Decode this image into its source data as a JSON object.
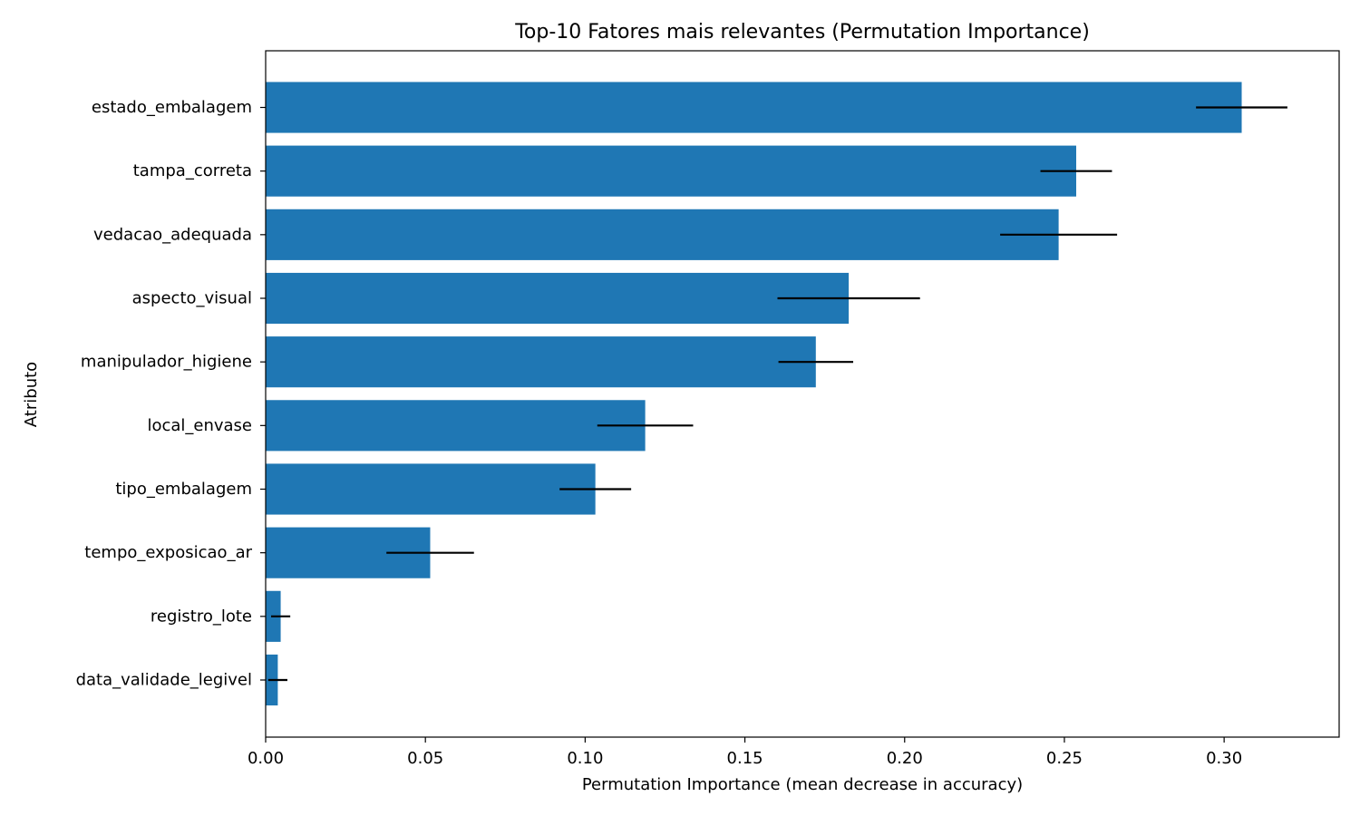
{
  "chart_data": {
    "type": "bar",
    "orientation": "horizontal",
    "title": "Top-10 Fatores mais relevantes (Permutation Importance)",
    "xlabel": "Permutation Importance (mean decrease in accuracy)",
    "ylabel": "Atributo",
    "xlim": [
      0.0,
      0.336
    ],
    "xticks": [
      0.0,
      0.05,
      0.1,
      0.15,
      0.2,
      0.25,
      0.3
    ],
    "xtick_labels": [
      "0.00",
      "0.05",
      "0.10",
      "0.15",
      "0.20",
      "0.25",
      "0.30"
    ],
    "grid": false,
    "legend": "none",
    "bar_color": "#1f77b4",
    "errorbar_color": "#000000",
    "categories": [
      "estado_embalagem",
      "tampa_correta",
      "vedacao_adequada",
      "aspecto_visual",
      "manipulador_higiene",
      "local_envase",
      "tipo_embalagem",
      "tempo_exposicao_ar",
      "registro_lote",
      "data_validade_legivel"
    ],
    "values": [
      0.3055,
      0.2537,
      0.2482,
      0.1825,
      0.1722,
      0.1188,
      0.1032,
      0.0515,
      0.0047,
      0.0038
    ],
    "errors": [
      0.0143,
      0.0112,
      0.0183,
      0.0223,
      0.0117,
      0.015,
      0.0112,
      0.0137,
      0.003,
      0.003
    ]
  }
}
